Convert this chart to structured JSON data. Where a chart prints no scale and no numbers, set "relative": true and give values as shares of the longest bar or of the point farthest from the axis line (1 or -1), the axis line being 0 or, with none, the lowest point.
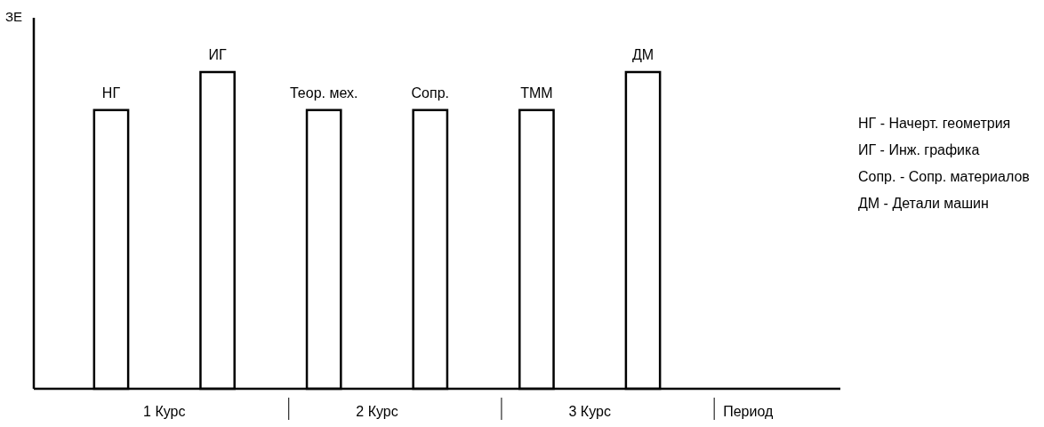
{
  "chart_data": {
    "type": "bar",
    "relative": true,
    "ylabel": "ЗЕ",
    "xlabel": "Период",
    "categories": [
      "НГ",
      "ИГ",
      "Теор. мех.",
      "Сопр.",
      "ТММ",
      "ДМ"
    ],
    "values": [
      0.88,
      1,
      0.88,
      0.88,
      0.88,
      1
    ],
    "color": "#ffffff",
    "annotations": [
      "1 Курс",
      "2 Курс",
      "3 Курс",
      "НГ - Начерт. геометрия",
      "ИГ - Инж. графика",
      "Сопр. - Сопр. материалов",
      "ДМ - Детали машин"
    ]
  }
}
